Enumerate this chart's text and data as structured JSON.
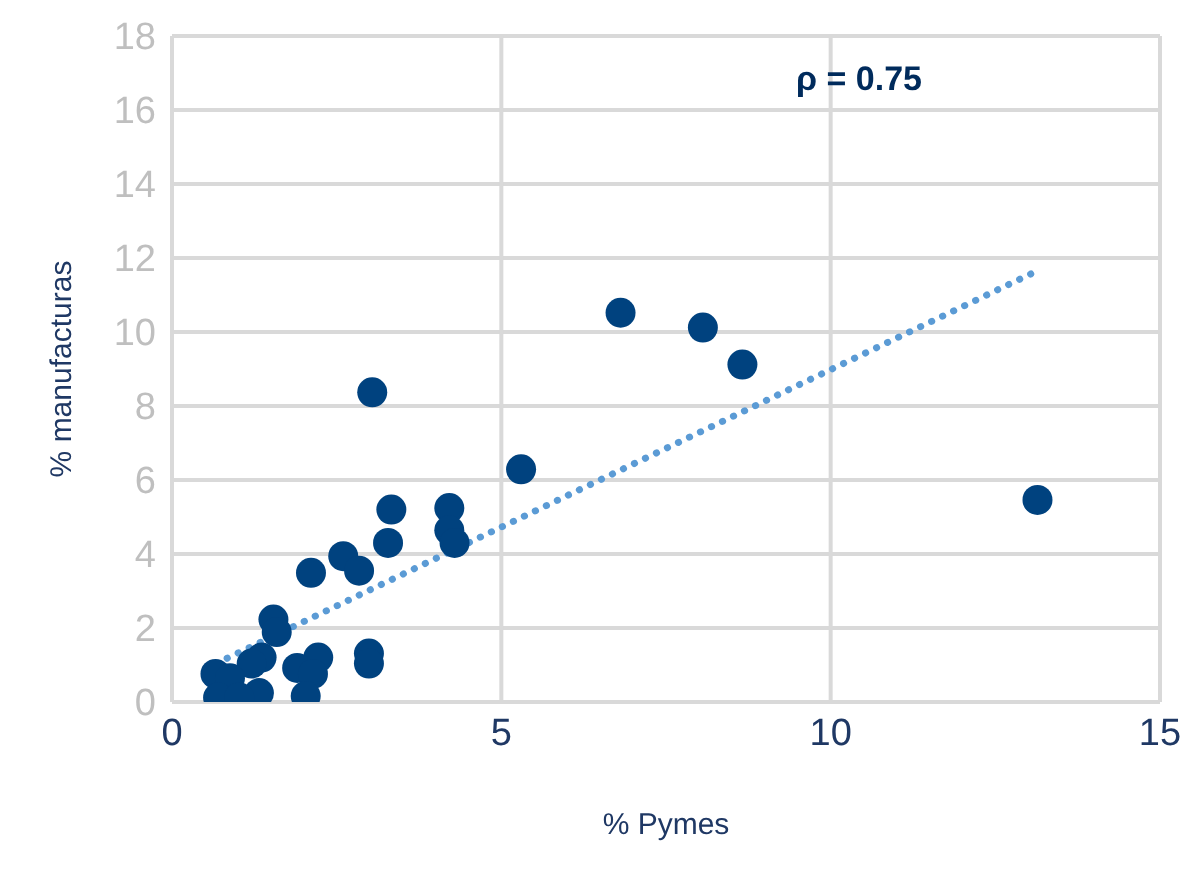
{
  "chart_data": {
    "type": "scatter",
    "xlabel": "% Pymes",
    "ylabel": "% manufacturas",
    "annotations": [
      "ρ = 0.75"
    ],
    "xlim": [
      0,
      15
    ],
    "xticks": [
      0,
      5,
      10,
      15
    ],
    "ylim": [
      0,
      18
    ],
    "yticks": [
      0,
      2,
      4,
      6,
      8,
      10,
      12,
      14,
      16,
      18
    ],
    "grid": true,
    "legend": false,
    "series": [
      {
        "color": "#00427f",
        "marker": "circle",
        "x": [
          6.81,
          8.06,
          8.66,
          3.04,
          5.3,
          13.14,
          3.33,
          4.21,
          4.21,
          4.29,
          3.28,
          2.6,
          2.84,
          2.11,
          1.54,
          1.59,
          2.99,
          2.99,
          2.22,
          1.9,
          2.14,
          1.36,
          1.21,
          2.03,
          1.32,
          0.66,
          0.88,
          0.7,
          1.02
        ],
        "values": [
          10.52,
          10.12,
          9.12,
          8.37,
          6.29,
          5.46,
          5.2,
          5.24,
          4.64,
          4.3,
          4.3,
          3.94,
          3.55,
          3.49,
          2.23,
          1.89,
          1.31,
          1.04,
          1.2,
          0.92,
          0.76,
          1.2,
          1.04,
          0.16,
          0.24,
          0.76,
          0.64,
          0.12,
          0.12
        ]
      },
      {
        "type": "line",
        "color": "#5b9bd5",
        "marker": "none",
        "line_style": "dotted",
        "x": [
          0.67,
          13.04
        ],
        "values": [
          1.04,
          11.57
        ]
      }
    ]
  }
}
